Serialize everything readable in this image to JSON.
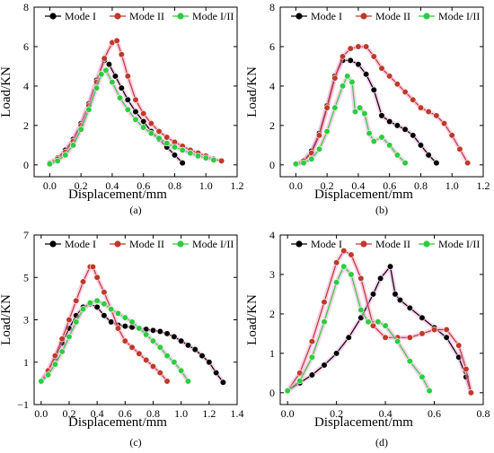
{
  "figure": {
    "panel_labels": [
      "(a)",
      "(b)",
      "(c)",
      "(d)"
    ]
  },
  "colors": {
    "mode_I": "#000000",
    "mode_II": "#c0392b",
    "mode_I_II": "#2ecc40",
    "halo": "#f7a8d8"
  },
  "chart_data": [
    {
      "type": "line",
      "panel": "(a)",
      "xlabel": "Displacement/mm",
      "ylabel": "Load/KN",
      "xlim": [
        -0.1,
        1.2
      ],
      "ylim": [
        -0.6,
        8
      ],
      "xticks": [
        "0.0",
        "0.2",
        "0.4",
        "0.6",
        "0.8",
        "1.0",
        "1.2"
      ],
      "yticks": [
        "0",
        "2",
        "4",
        "6",
        "8"
      ],
      "xtick_values": [
        0,
        0.2,
        0.4,
        0.6,
        0.8,
        1.0,
        1.2
      ],
      "ytick_values": [
        0,
        2,
        4,
        6,
        8
      ],
      "legend_position": "top",
      "series": [
        {
          "name": "Mode I",
          "color_key": "mode_I",
          "x": [
            0.0,
            0.05,
            0.1,
            0.15,
            0.2,
            0.25,
            0.3,
            0.35,
            0.38,
            0.42,
            0.46,
            0.5,
            0.55,
            0.6,
            0.65,
            0.7,
            0.75,
            0.8,
            0.85
          ],
          "y": [
            0.1,
            0.35,
            0.75,
            1.3,
            2.1,
            3.1,
            4.3,
            5.3,
            5.1,
            4.5,
            3.9,
            3.3,
            2.7,
            2.2,
            1.7,
            1.3,
            0.9,
            0.5,
            0.1
          ]
        },
        {
          "name": "Mode II",
          "color_key": "mode_II",
          "x": [
            0.0,
            0.05,
            0.1,
            0.15,
            0.2,
            0.25,
            0.3,
            0.35,
            0.4,
            0.43,
            0.46,
            0.5,
            0.55,
            0.6,
            0.65,
            0.7,
            0.75,
            0.8,
            0.85,
            0.9,
            0.95,
            1.0,
            1.05,
            1.1
          ],
          "y": [
            0.1,
            0.3,
            0.65,
            1.2,
            2.0,
            3.0,
            4.2,
            5.4,
            6.2,
            6.3,
            5.6,
            4.5,
            3.3,
            2.6,
            2.1,
            1.7,
            1.4,
            1.15,
            0.95,
            0.75,
            0.6,
            0.45,
            0.3,
            0.2
          ]
        },
        {
          "name": "Mode I/II",
          "color_key": "mode_I_II",
          "x": [
            0.0,
            0.05,
            0.1,
            0.15,
            0.2,
            0.25,
            0.3,
            0.33,
            0.36,
            0.4,
            0.45,
            0.5,
            0.55,
            0.6,
            0.65,
            0.7,
            0.75,
            0.8,
            0.85,
            0.9,
            0.95,
            1.0,
            1.05
          ],
          "y": [
            0.05,
            0.2,
            0.5,
            1.0,
            1.8,
            2.8,
            3.9,
            4.6,
            4.8,
            4.2,
            3.4,
            2.8,
            2.3,
            1.9,
            1.6,
            1.35,
            1.1,
            0.9,
            0.75,
            0.6,
            0.45,
            0.35,
            0.25
          ]
        }
      ]
    },
    {
      "type": "line",
      "panel": "(b)",
      "xlabel": "Displacement/mm",
      "ylabel": "Load/KN",
      "xlim": [
        -0.1,
        1.2
      ],
      "ylim": [
        -0.6,
        8
      ],
      "xticks": [
        "0.0",
        "0.2",
        "0.4",
        "0.6",
        "0.8",
        "1.0",
        "1.2"
      ],
      "yticks": [
        "0",
        "2",
        "4",
        "6",
        "8"
      ],
      "xtick_values": [
        0,
        0.2,
        0.4,
        0.6,
        0.8,
        1.0,
        1.2
      ],
      "ytick_values": [
        0,
        2,
        4,
        6,
        8
      ],
      "legend_position": "top",
      "series": [
        {
          "name": "Mode I",
          "color_key": "mode_I",
          "x": [
            0.0,
            0.05,
            0.1,
            0.15,
            0.2,
            0.25,
            0.3,
            0.35,
            0.4,
            0.45,
            0.5,
            0.55,
            0.6,
            0.65,
            0.7,
            0.75,
            0.8,
            0.85,
            0.9
          ],
          "y": [
            0.05,
            0.2,
            0.7,
            1.6,
            3.0,
            4.5,
            5.3,
            5.3,
            5.1,
            4.6,
            3.8,
            2.5,
            2.2,
            2.0,
            1.8,
            1.5,
            1.0,
            0.5,
            0.1
          ]
        },
        {
          "name": "Mode II",
          "color_key": "mode_II",
          "x": [
            0.0,
            0.05,
            0.1,
            0.15,
            0.2,
            0.25,
            0.3,
            0.35,
            0.4,
            0.45,
            0.5,
            0.55,
            0.6,
            0.65,
            0.7,
            0.75,
            0.8,
            0.85,
            0.9,
            0.95,
            1.0,
            1.05,
            1.1
          ],
          "y": [
            0.05,
            0.2,
            0.6,
            1.5,
            2.9,
            4.4,
            5.5,
            5.9,
            6.0,
            6.0,
            5.5,
            4.9,
            4.5,
            4.1,
            3.7,
            3.3,
            2.9,
            2.7,
            2.5,
            2.1,
            1.5,
            0.8,
            0.1
          ]
        },
        {
          "name": "Mode I/II",
          "color_key": "mode_I_II",
          "x": [
            0.0,
            0.05,
            0.1,
            0.15,
            0.2,
            0.25,
            0.3,
            0.33,
            0.36,
            0.38,
            0.41,
            0.44,
            0.47,
            0.5,
            0.55,
            0.6,
            0.65,
            0.7
          ],
          "y": [
            0.05,
            0.1,
            0.3,
            0.8,
            1.7,
            2.9,
            4.0,
            4.5,
            4.2,
            2.7,
            2.9,
            2.6,
            1.6,
            1.2,
            1.4,
            1.0,
            0.5,
            0.1
          ]
        }
      ]
    },
    {
      "type": "line",
      "panel": "(c)",
      "xlabel": "Displacement/mm",
      "ylabel": "Load/KN",
      "xlim": [
        -0.05,
        1.4
      ],
      "ylim": [
        -1,
        7
      ],
      "xticks": [
        "0.0",
        "0.2",
        "0.4",
        "0.6",
        "0.8",
        "1.0",
        "1.2",
        "1.4"
      ],
      "yticks": [
        "−1",
        "1",
        "3",
        "5",
        "7"
      ],
      "xtick_values": [
        0,
        0.2,
        0.4,
        0.6,
        0.8,
        1.0,
        1.2,
        1.4
      ],
      "ytick_values": [
        -1,
        1,
        3,
        5,
        7
      ],
      "legend_position": "top",
      "series": [
        {
          "name": "Mode I",
          "color_key": "mode_I",
          "x": [
            0.0,
            0.05,
            0.1,
            0.15,
            0.2,
            0.25,
            0.3,
            0.35,
            0.4,
            0.45,
            0.5,
            0.55,
            0.6,
            0.65,
            0.7,
            0.75,
            0.8,
            0.85,
            0.9,
            0.95,
            1.0,
            1.05,
            1.1,
            1.15,
            1.2,
            1.25,
            1.3
          ],
          "y": [
            0.1,
            0.6,
            1.2,
            1.9,
            2.6,
            3.2,
            3.6,
            3.75,
            3.6,
            3.2,
            2.9,
            2.75,
            2.7,
            2.65,
            2.6,
            2.55,
            2.5,
            2.45,
            2.35,
            2.2,
            2.0,
            1.8,
            1.6,
            1.3,
            1.0,
            0.5,
            0.05
          ]
        },
        {
          "name": "Mode II",
          "color_key": "mode_II",
          "x": [
            0.0,
            0.05,
            0.1,
            0.15,
            0.2,
            0.25,
            0.3,
            0.35,
            0.37,
            0.4,
            0.45,
            0.5,
            0.55,
            0.6,
            0.65,
            0.7,
            0.75,
            0.8,
            0.85,
            0.9
          ],
          "y": [
            0.1,
            0.6,
            1.3,
            2.1,
            3.0,
            3.9,
            4.8,
            5.5,
            5.5,
            5.0,
            4.3,
            3.5,
            2.6,
            2.0,
            1.7,
            1.4,
            1.1,
            0.8,
            0.5,
            0.1
          ]
        },
        {
          "name": "Mode I/II",
          "color_key": "mode_I_II",
          "x": [
            0.0,
            0.05,
            0.1,
            0.15,
            0.2,
            0.25,
            0.3,
            0.35,
            0.4,
            0.45,
            0.5,
            0.55,
            0.6,
            0.65,
            0.7,
            0.75,
            0.8,
            0.85,
            0.9,
            0.95,
            1.0,
            1.05
          ],
          "y": [
            0.1,
            0.4,
            0.9,
            1.5,
            2.2,
            2.9,
            3.5,
            3.8,
            3.9,
            3.75,
            3.5,
            3.3,
            3.1,
            2.9,
            2.6,
            2.3,
            2.0,
            1.7,
            1.3,
            1.0,
            0.6,
            0.1
          ]
        }
      ]
    },
    {
      "type": "line",
      "panel": "(d)",
      "xlabel": "Displacement/mm",
      "ylabel": "Load/KN",
      "xlim": [
        -0.03,
        0.8
      ],
      "ylim": [
        -0.3,
        4
      ],
      "xticks": [
        "0.0",
        "0.2",
        "0.4",
        "0.6",
        "0.8"
      ],
      "yticks": [
        "0",
        "1",
        "2",
        "3",
        "4"
      ],
      "xtick_values": [
        0,
        0.2,
        0.4,
        0.6,
        0.8
      ],
      "ytick_values": [
        0,
        1,
        2,
        3,
        4
      ],
      "legend_position": "top",
      "series": [
        {
          "name": "Mode I",
          "color_key": "mode_I",
          "x": [
            0.0,
            0.05,
            0.1,
            0.15,
            0.2,
            0.25,
            0.3,
            0.35,
            0.38,
            0.42,
            0.44,
            0.46,
            0.5,
            0.55,
            0.6,
            0.65,
            0.7,
            0.73,
            0.75
          ],
          "y": [
            0.05,
            0.25,
            0.45,
            0.7,
            1.0,
            1.4,
            1.9,
            2.5,
            2.9,
            3.2,
            2.5,
            2.35,
            2.15,
            1.9,
            1.65,
            1.4,
            0.9,
            0.4,
            0.0
          ]
        },
        {
          "name": "Mode II",
          "color_key": "mode_II",
          "x": [
            0.0,
            0.05,
            0.1,
            0.15,
            0.2,
            0.23,
            0.26,
            0.3,
            0.35,
            0.4,
            0.45,
            0.5,
            0.55,
            0.6,
            0.65,
            0.7,
            0.73,
            0.75
          ],
          "y": [
            0.05,
            0.5,
            1.3,
            2.3,
            3.3,
            3.6,
            3.5,
            2.9,
            1.7,
            1.4,
            1.4,
            1.4,
            1.5,
            1.6,
            1.6,
            1.2,
            0.6,
            0.0
          ]
        },
        {
          "name": "Mode I/II",
          "color_key": "mode_I_II",
          "x": [
            0.0,
            0.05,
            0.1,
            0.15,
            0.2,
            0.23,
            0.26,
            0.3,
            0.33,
            0.37,
            0.4,
            0.45,
            0.5,
            0.55,
            0.58
          ],
          "y": [
            0.05,
            0.3,
            0.9,
            1.8,
            2.8,
            3.2,
            3.0,
            2.1,
            1.8,
            1.8,
            1.7,
            1.3,
            0.8,
            0.4,
            0.05
          ]
        }
      ]
    }
  ]
}
